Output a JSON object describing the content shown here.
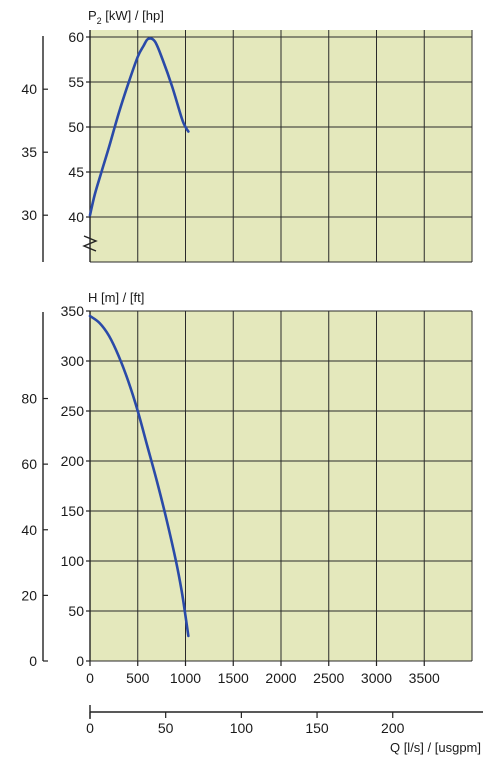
{
  "chart_data": [
    {
      "type": "line",
      "title": "P2 [kW] / [hp]",
      "title_main": "P",
      "title_sub": "2",
      "title_rest": " [kW] / [hp]",
      "x_axis": {
        "label": "Q [l/s] / [usgpm]",
        "range": [
          0,
          4000
        ]
      },
      "y_primary": {
        "unit": "hp",
        "range": [
          35,
          61
        ],
        "ticks": [
          "40",
          "45",
          "50",
          "55",
          "60"
        ],
        "tick_values": [
          40,
          45,
          50,
          55,
          60
        ]
      },
      "y_secondary": {
        "unit": "kW",
        "ticks": [
          "30",
          "35",
          "40"
        ],
        "tick_positions_hp": [
          40.2,
          47.2,
          54.2
        ]
      },
      "grid": true,
      "axis_break": true,
      "series": [
        {
          "x": [
            0,
            50,
            120,
            200,
            300,
            400,
            500,
            560,
            610,
            680,
            760,
            860,
            960,
            1000,
            1030
          ],
          "y": [
            40.2,
            42.5,
            45.0,
            47.8,
            51.5,
            54.8,
            57.8,
            59.0,
            59.8,
            59.5,
            57.5,
            54.5,
            51.0,
            50.0,
            49.5
          ]
        }
      ]
    },
    {
      "type": "line",
      "title": "H [m] / [ft]",
      "x_axis": {
        "label": "Q [l/s] / [usgpm]",
        "range": [
          0,
          4000
        ],
        "ticks": [
          "0",
          "500",
          "1000",
          "1500",
          "2000",
          "2500",
          "3000",
          "3500"
        ],
        "tick_values": [
          0,
          500,
          1000,
          1500,
          2000,
          2500,
          3000,
          3500
        ]
      },
      "x_secondary": {
        "unit": "l/s",
        "ticks": [
          "0",
          "50",
          "100",
          "150",
          "200"
        ],
        "tick_values": [
          0,
          50,
          100,
          150,
          200
        ]
      },
      "y_primary": {
        "unit": "ft",
        "range": [
          0,
          350
        ],
        "ticks": [
          "0",
          "50",
          "100",
          "150",
          "200",
          "250",
          "300",
          "350"
        ],
        "tick_values": [
          0,
          50,
          100,
          150,
          200,
          250,
          300,
          350
        ]
      },
      "y_secondary": {
        "unit": "m",
        "ticks": [
          "0",
          "20",
          "40",
          "60",
          "80"
        ],
        "tick_values": [
          0,
          20,
          40,
          60,
          80
        ]
      },
      "grid": true,
      "series": [
        {
          "x": [
            0,
            100,
            200,
            300,
            400,
            500,
            600,
            700,
            800,
            900,
            960,
            1000,
            1030
          ],
          "y": [
            345,
            338,
            325,
            305,
            280,
            250,
            215,
            180,
            142,
            100,
            70,
            45,
            25
          ]
        }
      ]
    }
  ],
  "colors": {
    "plot_bg": "#e4e8bc",
    "grid": "#2a2a2a",
    "curve": "#2a4aa8",
    "axis": "#222222"
  }
}
